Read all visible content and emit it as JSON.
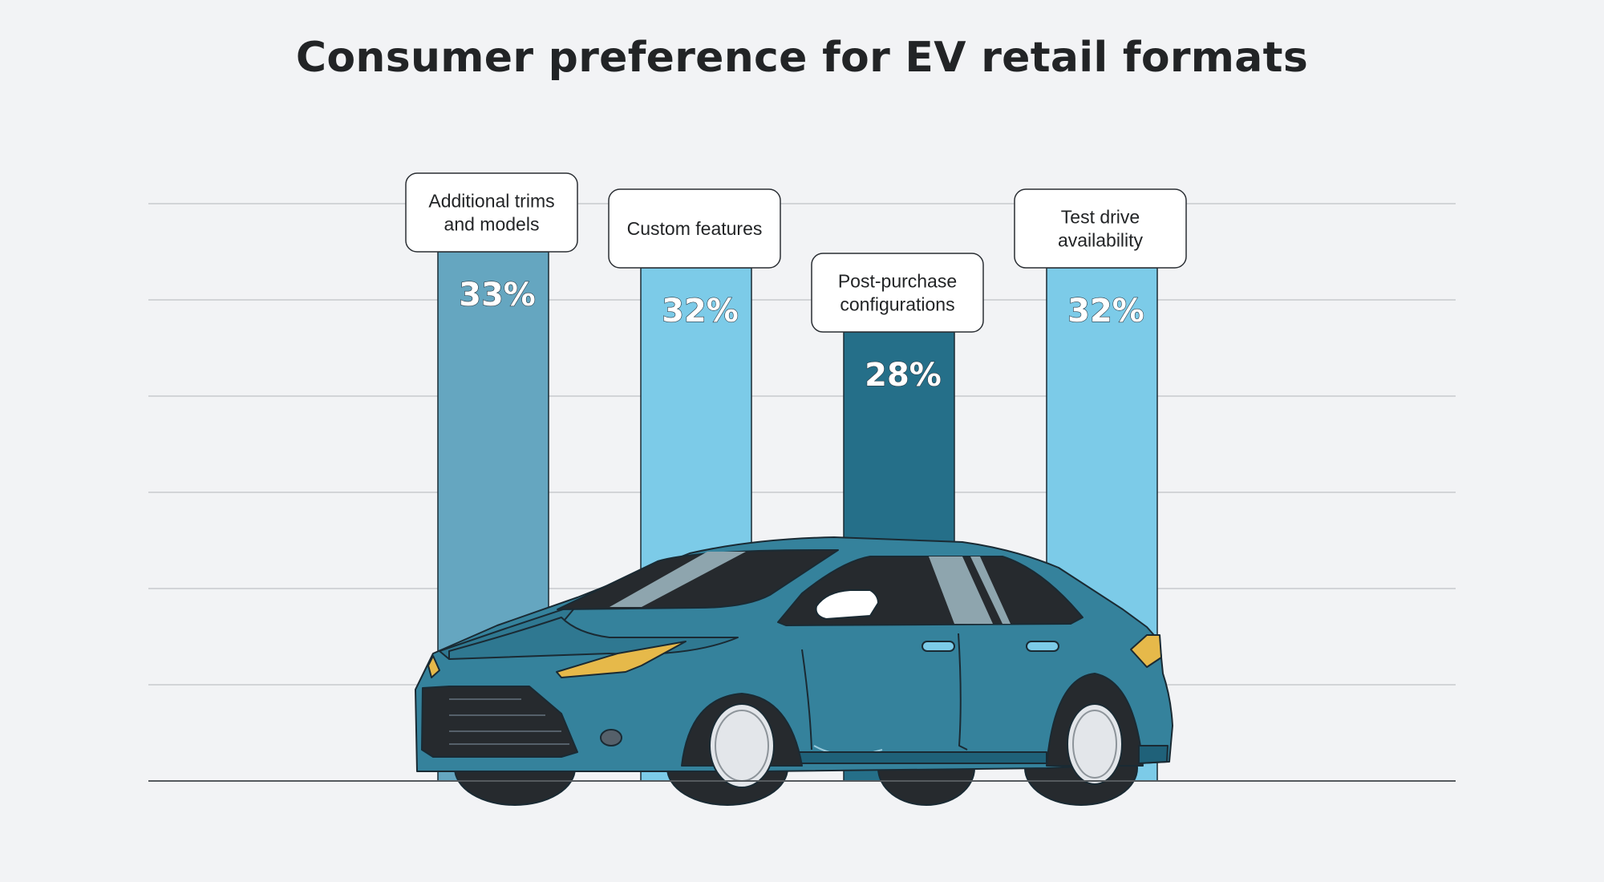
{
  "chart_data": {
    "type": "bar",
    "title": "Consumer preference for EV retail formats",
    "categories": [
      [
        "Additional trims",
        "and models"
      ],
      [
        "Custom features"
      ],
      [
        "Post-purchase",
        "configurations"
      ],
      [
        "Test drive",
        "availability"
      ]
    ],
    "values": [
      33,
      32,
      28,
      32
    ],
    "value_labels": [
      "33%",
      "32%",
      "28%",
      "32%"
    ],
    "bar_colors": [
      "#65a6c0",
      "#7ccbe8",
      "#256f89",
      "#7ccbe8"
    ],
    "ylim": [
      0,
      36
    ],
    "grid": true
  },
  "illustration": {
    "car_color": "#35829c",
    "car_dark": "#1f6179",
    "headlight": "#e6b94a"
  }
}
